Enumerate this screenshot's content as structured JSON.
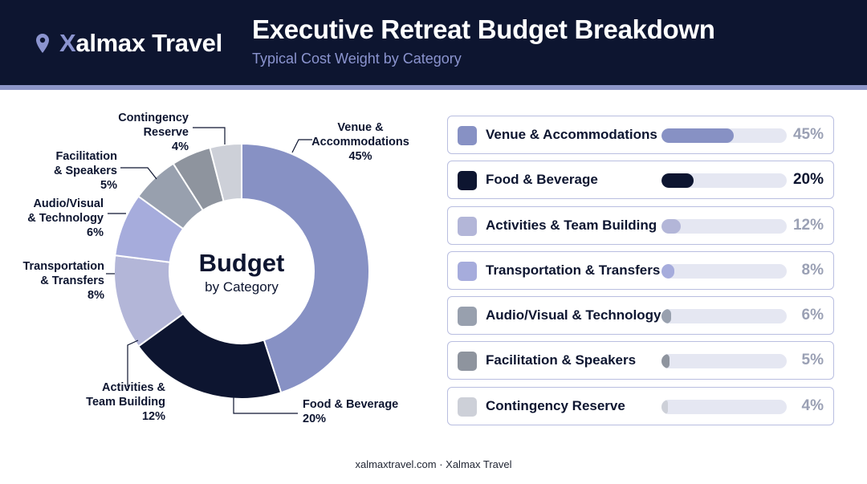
{
  "brand": {
    "name_first": "X",
    "name_rest": "almax Travel"
  },
  "header": {
    "title": "Executive Retreat Budget Breakdown",
    "subtitle": "Typical Cost Weight by Category"
  },
  "center": {
    "title": "Budget",
    "subtitle": "by Category"
  },
  "colors": {
    "header_bg": "#0d1530",
    "accent": "#8b94cf",
    "series": [
      "#8791c4",
      "#0d1530",
      "#b3b6d8",
      "#a6acdc",
      "#98a0ae",
      "#8e949e",
      "#cdd0d8"
    ]
  },
  "chart_data": {
    "type": "pie",
    "variant": "donut",
    "title": "Budget",
    "subtitle": "by Category",
    "categories": [
      "Venue & Accommodations",
      "Food & Beverage",
      "Activities & Team Building",
      "Transportation & Transfers",
      "Audio/Visual & Technology",
      "Facilitation & Speakers",
      "Contingency Reserve"
    ],
    "values": [
      45,
      20,
      12,
      8,
      6,
      5,
      4
    ],
    "unit": "%",
    "slice_labels": [
      {
        "lines": [
          "Venue &",
          "Accommodations",
          "45%"
        ]
      },
      {
        "lines": [
          "Food & Beverage",
          "20%"
        ]
      },
      {
        "lines": [
          "Activities &",
          "Team Building",
          "12%"
        ]
      },
      {
        "lines": [
          "Transportation",
          "& Transfers",
          "8%"
        ]
      },
      {
        "lines": [
          "Audio/Visual",
          "& Technology",
          "6%"
        ]
      },
      {
        "lines": [
          "Facilitation",
          "& Speakers",
          "5%"
        ]
      },
      {
        "lines": [
          "Contingency",
          "Reserve",
          "4%"
        ]
      }
    ]
  },
  "rows": [
    {
      "label": "Venue & Accommodations",
      "value": 45,
      "pct": "45%"
    },
    {
      "label": "Food & Beverage",
      "value": 20,
      "pct": "20%"
    },
    {
      "label": "Activities & Team Building",
      "value": 12,
      "pct": "12%"
    },
    {
      "label": "Transportation & Transfers",
      "value": 8,
      "pct": "8%"
    },
    {
      "label": "Audio/Visual & Technology",
      "value": 6,
      "pct": "6%"
    },
    {
      "label": "Facilitation & Speakers",
      "value": 5,
      "pct": "5%"
    },
    {
      "label": "Contingency Reserve",
      "value": 4,
      "pct": "4%"
    }
  ],
  "footer": {
    "text": "xalmaxtravel.com · Xalmax Travel"
  }
}
